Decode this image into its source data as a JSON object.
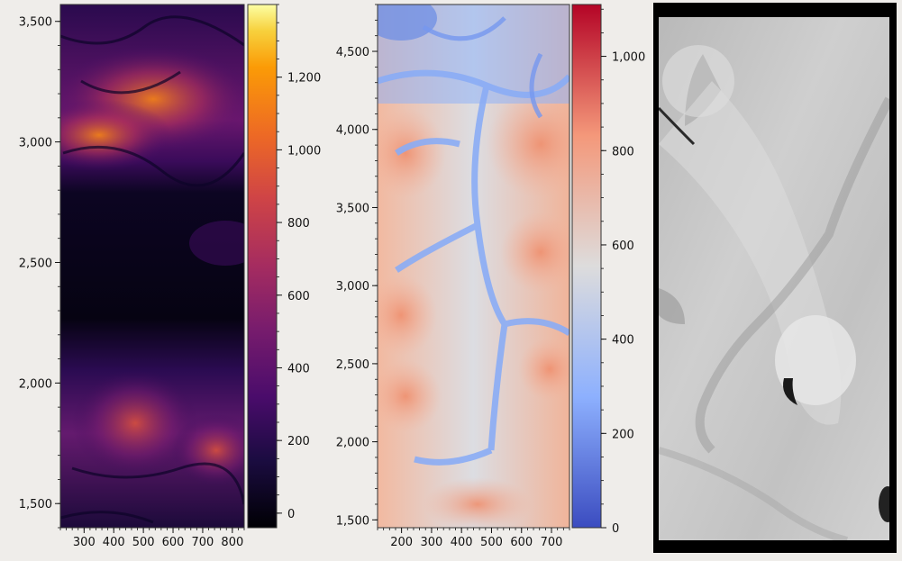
{
  "chart_data": [
    {
      "type": "heatmap",
      "title": "",
      "xlabel": "",
      "ylabel": "",
      "colormap": "inferno",
      "xlim": [
        220,
        840
      ],
      "ylim": [
        1400,
        3570
      ],
      "x_ticks": [
        300,
        400,
        500,
        600,
        700,
        800
      ],
      "x_tick_labels": [
        "300",
        "400",
        "500",
        "600",
        "700",
        "800"
      ],
      "y_ticks": [
        1500,
        2000,
        2500,
        3000,
        3500
      ],
      "y_tick_labels": [
        "1,500",
        "2,000",
        "2,500",
        "3,000",
        "3,500"
      ],
      "colorbar": {
        "range": [
          -40,
          1400
        ],
        "ticks": [
          0,
          200,
          400,
          600,
          800,
          1000,
          1200
        ],
        "tick_labels": [
          "0",
          "200",
          "400",
          "600",
          "800",
          "1,000",
          "1,200"
        ]
      }
    },
    {
      "type": "heatmap",
      "title": "",
      "xlabel": "",
      "ylabel": "",
      "colormap": "coolwarm",
      "xlim": [
        120,
        760
      ],
      "ylim": [
        1450,
        4800
      ],
      "x_ticks": [
        200,
        300,
        400,
        500,
        600,
        700
      ],
      "x_tick_labels": [
        "200",
        "300",
        "400",
        "500",
        "600",
        "700"
      ],
      "y_ticks": [
        1500,
        2000,
        2500,
        3000,
        3500,
        4000,
        4500
      ],
      "y_tick_labels": [
        "1,500",
        "2,000",
        "2,500",
        "3,000",
        "3,500",
        "4,000",
        "4,500"
      ],
      "colorbar": {
        "range": [
          0,
          1110
        ],
        "ticks": [
          0,
          200,
          400,
          600,
          800,
          1000
        ],
        "tick_labels": [
          "0",
          "200",
          "400",
          "600",
          "800",
          "1,000"
        ]
      }
    },
    {
      "type": "image",
      "colormap": "gray",
      "description_visible": "grayscale terrain image with black frame, no axes"
    }
  ],
  "colors": {
    "background": "#efedea",
    "frame": "#000000"
  }
}
